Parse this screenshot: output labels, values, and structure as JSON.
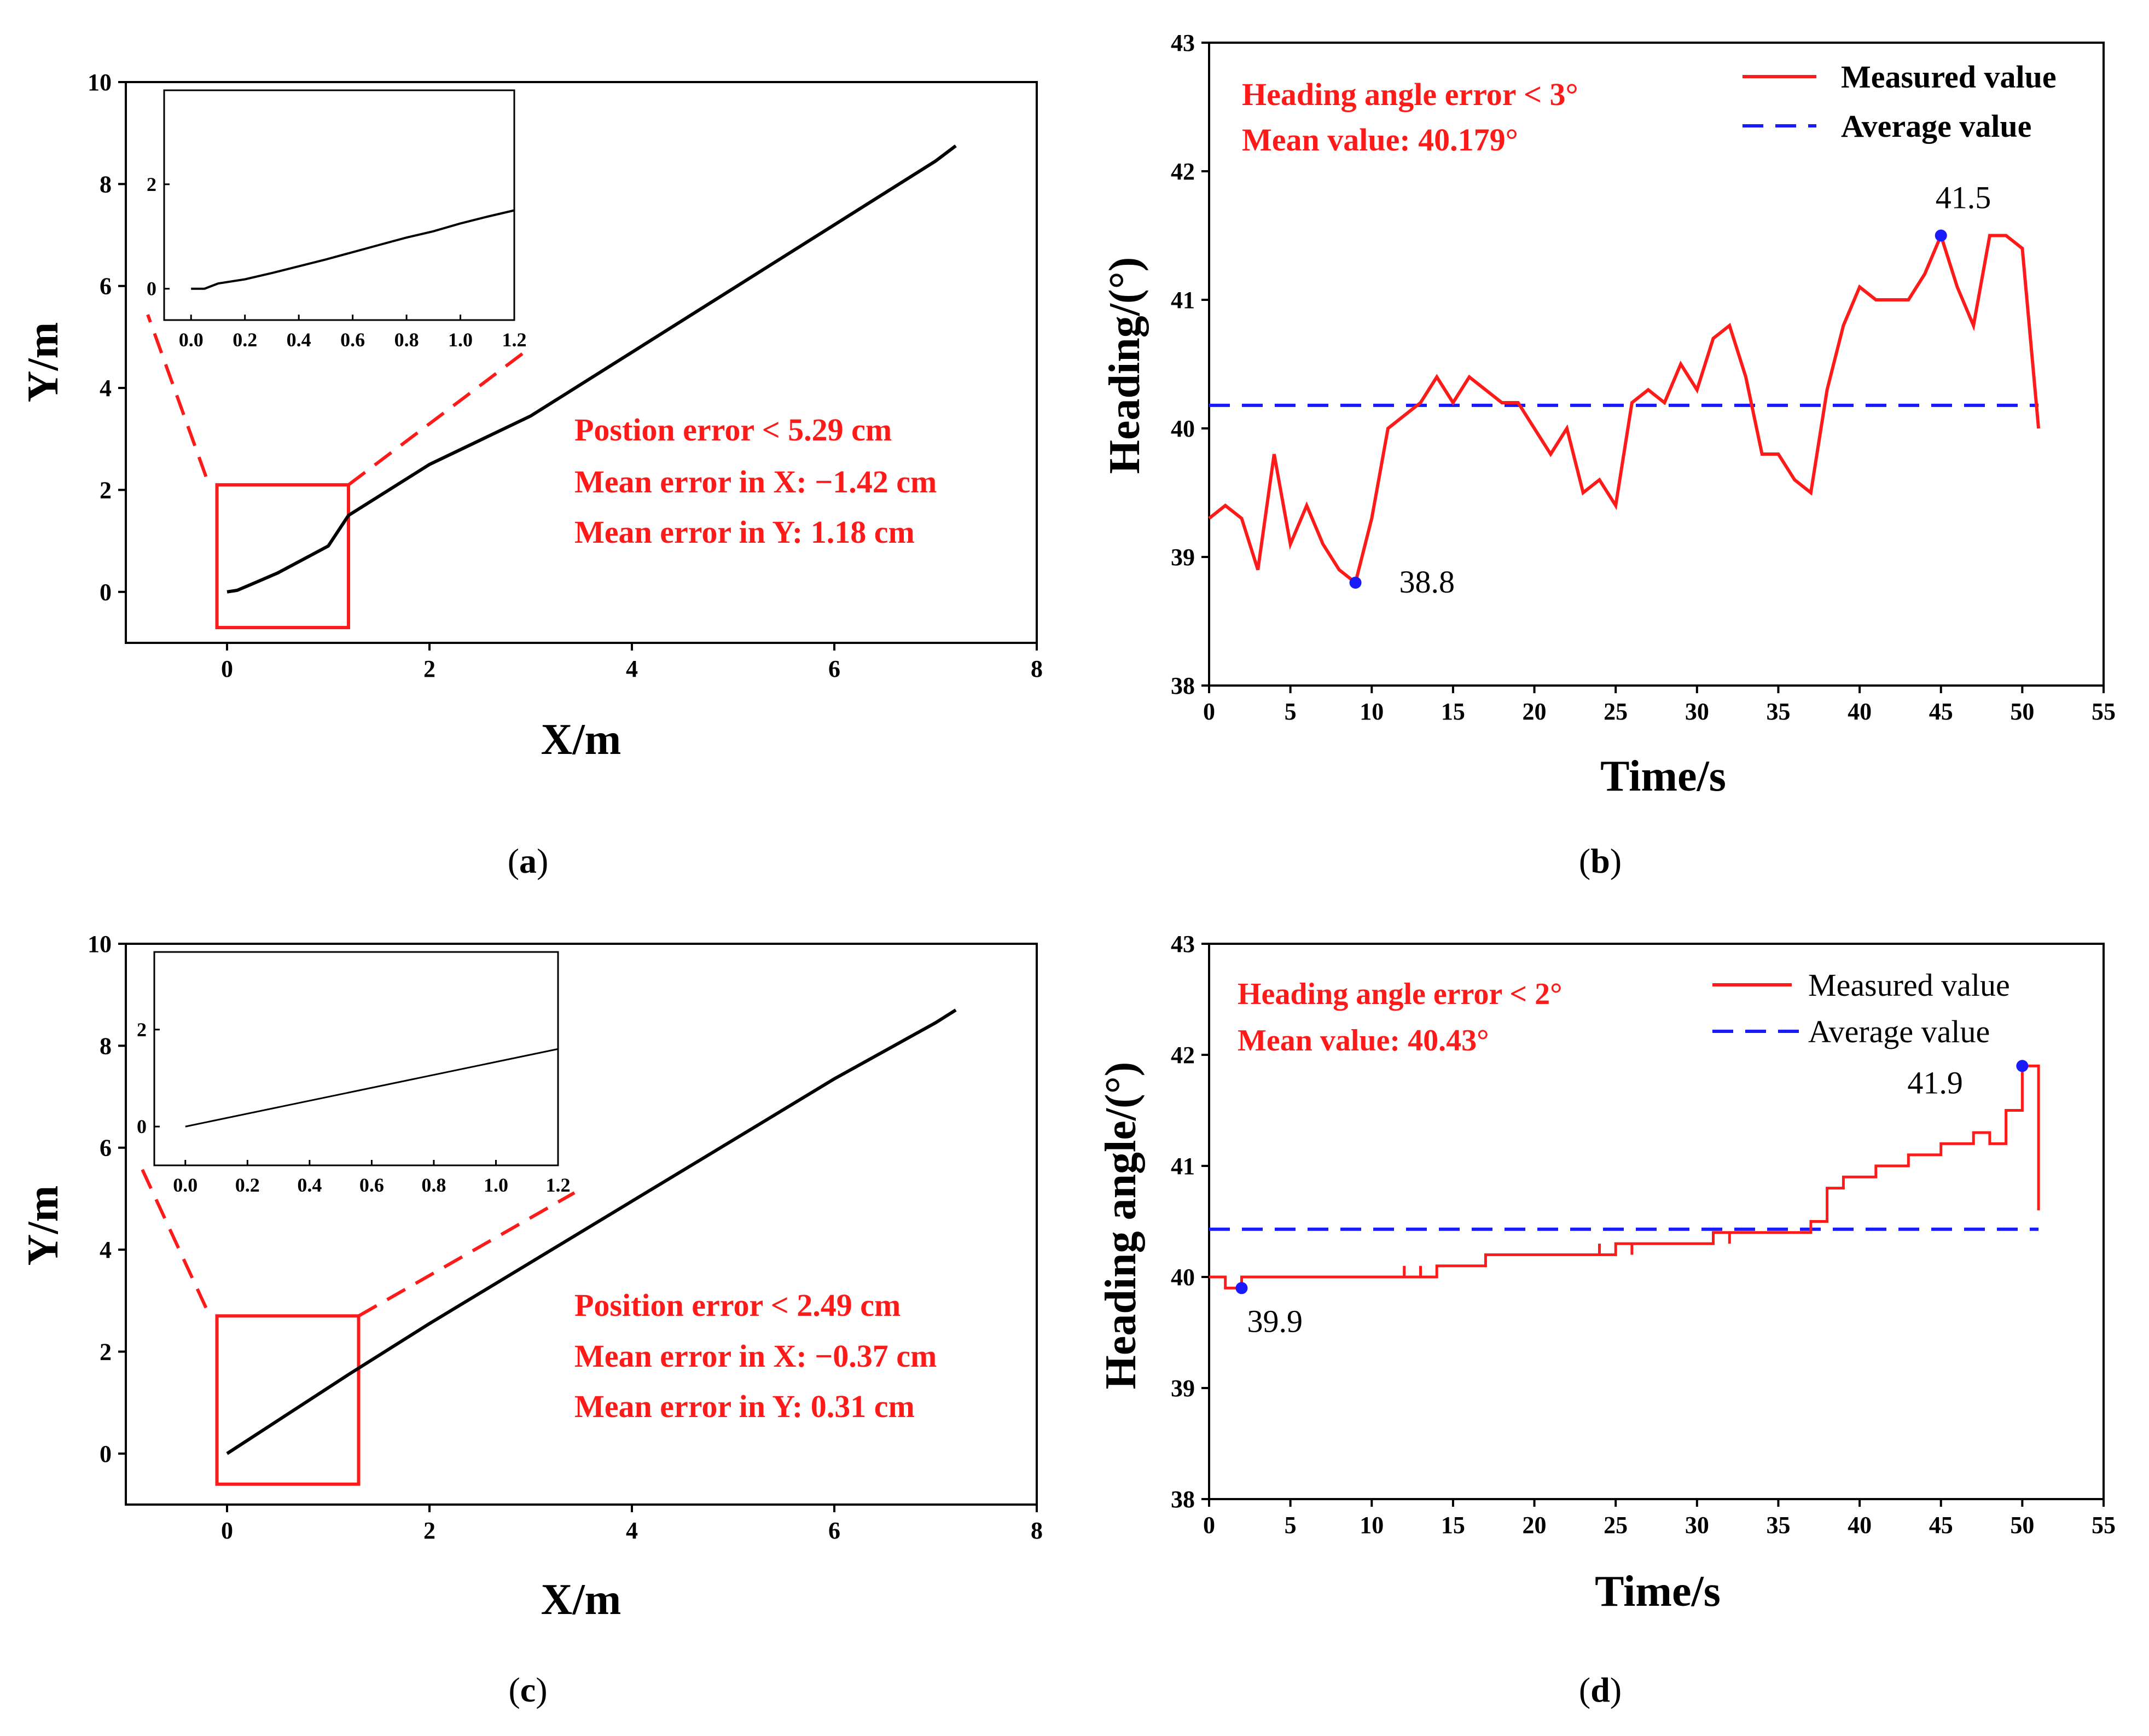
{
  "chart_data": [
    {
      "id": "a",
      "type": "line",
      "panel_label": "a",
      "xlabel": "X/m",
      "ylabel": "Y/m",
      "xlim": [
        -1,
        8
      ],
      "ylim": [
        -1,
        10
      ],
      "xticks": [
        "0",
        "2",
        "4",
        "6",
        "8"
      ],
      "yticks": [
        "0",
        "2",
        "4",
        "6",
        "8",
        "10"
      ],
      "series": [
        {
          "x": [
            0,
            0.1,
            0.3,
            0.5,
            1.0,
            1.2,
            2,
            3,
            4,
            5,
            6,
            7,
            7.2
          ],
          "y": [
            0,
            0.03,
            0.2,
            0.37,
            0.9,
            1.5,
            2.5,
            3.45,
            4.7,
            5.95,
            7.2,
            8.45,
            8.75
          ],
          "color": "#000000"
        }
      ],
      "zoom_box": {
        "x": [
          -0.1,
          1.2
        ],
        "y": [
          -0.7,
          2.1
        ]
      },
      "annotations": [
        "Postion error < 5.29 cm",
        "Mean error in X: −1.42 cm",
        "Mean error in Y: 1.18 cm"
      ],
      "inset": {
        "xlim": [
          -0.1,
          1.2
        ],
        "ylim": [
          -0.6,
          3.8
        ],
        "xticks": [
          "0.0",
          "0.2",
          "0.4",
          "0.6",
          "0.8",
          "1.0",
          "1.2"
        ],
        "yticks": [
          "0",
          "2"
        ],
        "series": [
          {
            "x": [
              0,
              0.05,
              0.1,
              0.2,
              0.3,
              0.4,
              0.5,
              0.6,
              0.7,
              0.8,
              0.9,
              1.0,
              1.1,
              1.2
            ],
            "y": [
              0,
              0,
              0.1,
              0.18,
              0.3,
              0.43,
              0.56,
              0.7,
              0.84,
              0.98,
              1.1,
              1.25,
              1.38,
              1.5
            ]
          }
        ]
      }
    },
    {
      "id": "b",
      "type": "line",
      "panel_label": "b",
      "xlabel": "Time/s",
      "ylabel": "Heading/(°)",
      "xlim": [
        0,
        55
      ],
      "ylim": [
        38,
        43
      ],
      "xticks": [
        "0",
        "5",
        "10",
        "15",
        "20",
        "25",
        "30",
        "35",
        "40",
        "45",
        "50",
        "55"
      ],
      "yticks": [
        "38",
        "39",
        "40",
        "41",
        "42",
        "43"
      ],
      "series": [
        {
          "name": "Measured value",
          "color": "#ff1a1a",
          "style": "solid",
          "x": [
            0,
            1,
            2,
            3,
            4,
            5,
            6,
            7,
            8,
            9,
            10,
            11,
            12,
            13,
            14,
            15,
            16,
            17,
            18,
            19,
            20,
            21,
            22,
            23,
            24,
            25,
            26,
            27,
            28,
            29,
            30,
            31,
            32,
            33,
            34,
            35,
            36,
            37,
            38,
            39,
            40,
            41,
            42,
            43,
            44,
            45,
            46,
            47,
            48,
            49,
            50,
            51
          ],
          "y": [
            39.3,
            39.4,
            39.3,
            38.9,
            39.8,
            39.1,
            39.4,
            39.1,
            38.9,
            38.8,
            39.3,
            40.0,
            40.1,
            40.2,
            40.4,
            40.2,
            40.4,
            40.3,
            40.2,
            40.2,
            40.0,
            39.8,
            40.0,
            39.5,
            39.6,
            39.4,
            40.2,
            40.3,
            40.2,
            40.5,
            40.3,
            40.7,
            40.8,
            40.4,
            39.8,
            39.8,
            39.6,
            39.5,
            40.3,
            40.8,
            41.1,
            41.0,
            41.0,
            41.0,
            41.2,
            41.5,
            41.1,
            40.8,
            41.5,
            41.5,
            41.4,
            40.0
          ]
        },
        {
          "name": "Average value",
          "color": "#1a1aff",
          "style": "dashed",
          "x": [
            0,
            51
          ],
          "y": [
            40.179,
            40.179
          ]
        }
      ],
      "markers": [
        {
          "x": 9,
          "y": 38.8,
          "label": "38.8"
        },
        {
          "x": 45,
          "y": 41.5,
          "label": "41.5"
        }
      ],
      "annotations": [
        "Heading angle error < 3°",
        "Mean value: 40.179°"
      ],
      "legend": "top-right"
    },
    {
      "id": "c",
      "type": "line",
      "panel_label": "c",
      "xlabel": "X/m",
      "ylabel": "Y/m",
      "xlim": [
        -1,
        8
      ],
      "ylim": [
        -1,
        10
      ],
      "xticks": [
        "0",
        "2",
        "4",
        "6",
        "8"
      ],
      "yticks": [
        "0",
        "2",
        "4",
        "6",
        "8",
        "10"
      ],
      "series": [
        {
          "x": [
            0,
            1.2,
            2,
            3,
            4,
            5,
            6,
            7,
            7.2
          ],
          "y": [
            0,
            1.55,
            2.55,
            3.75,
            4.95,
            6.15,
            7.35,
            8.45,
            8.7
          ],
          "color": "#000000"
        }
      ],
      "zoom_box": {
        "x": [
          -0.1,
          1.3
        ],
        "y": [
          -0.6,
          2.7
        ]
      },
      "annotations": [
        "Position error < 2.49 cm",
        "Mean error in X: −0.37 cm",
        "Mean error in Y: 0.31 cm"
      ],
      "inset": {
        "xlim": [
          -0.1,
          1.2
        ],
        "ylim": [
          -0.8,
          3.6
        ],
        "xticks": [
          "0.0",
          "0.2",
          "0.4",
          "0.6",
          "0.8",
          "1.0",
          "1.2"
        ],
        "yticks": [
          "0",
          "2"
        ],
        "series": [
          {
            "x": [
              0,
              1.2
            ],
            "y": [
              0,
              1.6
            ]
          }
        ]
      }
    },
    {
      "id": "d",
      "type": "line",
      "panel_label": "d",
      "xlabel": "Time/s",
      "ylabel": "Heading angle/(°)",
      "xlim": [
        0,
        55
      ],
      "ylim": [
        38,
        43
      ],
      "xticks": [
        "0",
        "5",
        "10",
        "15",
        "20",
        "25",
        "30",
        "35",
        "40",
        "45",
        "50",
        "55"
      ],
      "yticks": [
        "38",
        "39",
        "40",
        "41",
        "42",
        "43"
      ],
      "series": [
        {
          "name": "Measured value",
          "color": "#ff1a1a",
          "style": "solid",
          "x": [
            0,
            1,
            1,
            2,
            2,
            12,
            12,
            12,
            13,
            13,
            13,
            14,
            14,
            17,
            17,
            24,
            24,
            24,
            25,
            25,
            26,
            26,
            26,
            31,
            31,
            32,
            32,
            32,
            37,
            37,
            38,
            38,
            39,
            39,
            41,
            41,
            43,
            43,
            45,
            45,
            47,
            47,
            48,
            48,
            49,
            49,
            50,
            50,
            51,
            51
          ],
          "y": [
            40.0,
            40.0,
            39.9,
            39.9,
            40.0,
            40.0,
            40.1,
            40.0,
            40.0,
            40.1,
            40.0,
            40.0,
            40.1,
            40.1,
            40.2,
            40.2,
            40.3,
            40.2,
            40.2,
            40.3,
            40.3,
            40.2,
            40.3,
            40.3,
            40.4,
            40.4,
            40.3,
            40.4,
            40.4,
            40.5,
            40.5,
            40.8,
            40.8,
            40.9,
            40.9,
            41.0,
            41.0,
            41.1,
            41.1,
            41.2,
            41.2,
            41.3,
            41.3,
            41.2,
            41.2,
            41.5,
            41.5,
            41.9,
            41.9,
            40.6
          ]
        },
        {
          "name": "Average value",
          "color": "#1a1aff",
          "style": "dashed",
          "x": [
            0,
            51
          ],
          "y": [
            40.43,
            40.43
          ]
        }
      ],
      "markers": [
        {
          "x": 2,
          "y": 39.9,
          "label": "39.9"
        },
        {
          "x": 50,
          "y": 41.9,
          "label": "41.9"
        }
      ],
      "annotations": [
        "Heading angle error < 2°",
        "Mean value: 40.43°"
      ],
      "legend": "top-right"
    }
  ]
}
